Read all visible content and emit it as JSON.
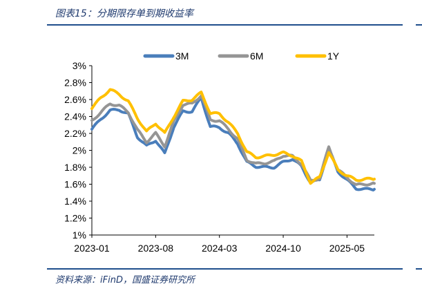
{
  "header": {
    "title": "图表15：分期限存单到期收益率"
  },
  "footer": {
    "source": "资料来源：iFinD，国盛证券研究所"
  },
  "chart_data": {
    "type": "line",
    "title": "分期限存单到期收益率",
    "xlabel": "",
    "ylabel": "",
    "ylim": [
      0.01,
      0.03
    ],
    "yticks": [
      "3%",
      "2.8%",
      "2.6%",
      "2.4%",
      "2.2%",
      "2%",
      "1.8%",
      "1.6%",
      "1.4%",
      "1.2%",
      "1%"
    ],
    "ytick_values": [
      0.03,
      0.028,
      0.026,
      0.024,
      0.022,
      0.02,
      0.018,
      0.016,
      0.014,
      0.012,
      0.01
    ],
    "xticks": [
      "2023-01",
      "2023-08",
      "2024-03",
      "2024-10",
      "2025-05"
    ],
    "x": [
      "2023-01",
      "2023-02",
      "2023-03",
      "2023-04",
      "2023-05",
      "2023-06",
      "2023-07",
      "2023-08",
      "2023-09",
      "2023-10",
      "2023-11",
      "2023-12",
      "2024-01",
      "2024-02",
      "2024-03",
      "2024-04",
      "2024-05",
      "2024-06",
      "2024-07",
      "2024-08",
      "2024-09",
      "2024-10",
      "2024-11",
      "2024-12",
      "2025-01",
      "2025-02",
      "2025-03",
      "2025-04",
      "2025-05",
      "2025-06",
      "2025-07",
      "2025-08"
    ],
    "legend_position": "top",
    "series": [
      {
        "name": "3M",
        "color": "#4a7ebb",
        "values": [
          0.0225,
          0.0237,
          0.0247,
          0.0248,
          0.0243,
          0.0216,
          0.0205,
          0.0212,
          0.0196,
          0.0228,
          0.0246,
          0.0246,
          0.0262,
          0.0228,
          0.0227,
          0.022,
          0.0208,
          0.0186,
          0.0181,
          0.018,
          0.018,
          0.0186,
          0.019,
          0.0181,
          0.0162,
          0.0165,
          0.0202,
          0.0175,
          0.0165,
          0.0155,
          0.0154,
          0.0154
        ]
      },
      {
        "name": "6M",
        "color": "#959595",
        "values": [
          0.0235,
          0.0245,
          0.0255,
          0.0253,
          0.0245,
          0.0224,
          0.021,
          0.022,
          0.0205,
          0.0234,
          0.0254,
          0.0255,
          0.0265,
          0.0236,
          0.0235,
          0.0225,
          0.0213,
          0.0189,
          0.0184,
          0.0185,
          0.0187,
          0.0194,
          0.0193,
          0.0184,
          0.0164,
          0.0167,
          0.0204,
          0.0177,
          0.0168,
          0.0159,
          0.016,
          0.0161
        ]
      },
      {
        "name": "1Y",
        "color": "#ffc000",
        "values": [
          0.025,
          0.0262,
          0.0272,
          0.0266,
          0.0258,
          0.0238,
          0.0222,
          0.0232,
          0.022,
          0.024,
          0.0258,
          0.026,
          0.0268,
          0.0244,
          0.0243,
          0.0233,
          0.022,
          0.0198,
          0.0192,
          0.0193,
          0.0195,
          0.0197,
          0.0194,
          0.0187,
          0.0162,
          0.0168,
          0.0198,
          0.0177,
          0.017,
          0.0165,
          0.0166,
          0.0166
        ]
      }
    ]
  }
}
